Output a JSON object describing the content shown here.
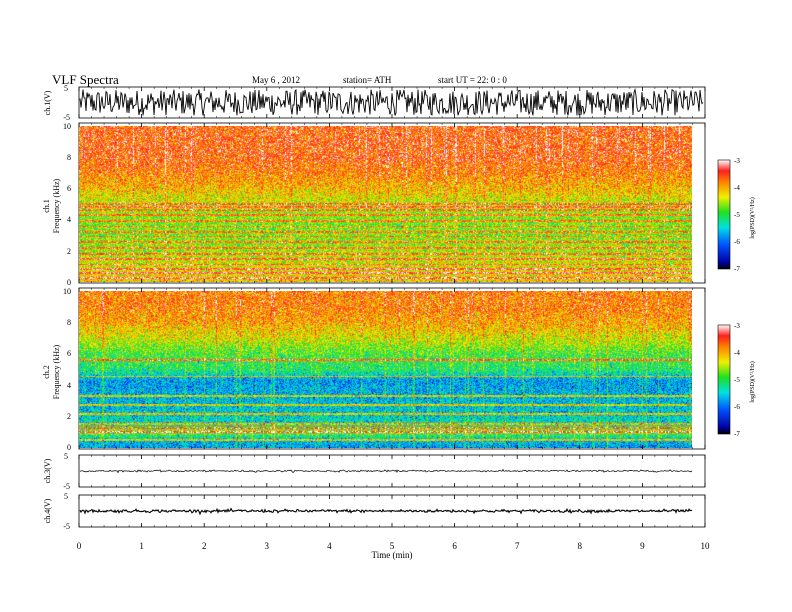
{
  "header": {
    "title": "VLF  Spectra",
    "date": "May 6  , 2012",
    "station": "station= ATH",
    "start": "start  UT  =    22: 0  : 0"
  },
  "chart_data": [
    {
      "id": "ch1-waveform",
      "type": "line",
      "ylabel": "ch.1(V)",
      "ylim": [
        -5,
        5
      ],
      "y_ticks": [
        "5",
        "-5"
      ],
      "xlim": [
        0,
        10
      ],
      "description_values": {
        "amplitude_range_V": [
          -4.5,
          4.5
        ]
      }
    },
    {
      "id": "ch1-spectrogram",
      "type": "heatmap",
      "ylabel_lines": [
        "ch.1",
        "Frequency  (kHz)"
      ],
      "ylim": [
        0,
        10
      ],
      "y_ticks": [
        "0",
        "2",
        "4",
        "6",
        "8",
        "10"
      ],
      "xlim": [
        0,
        10
      ],
      "data_end_min": 9.8,
      "colorbar": {
        "label": "log(PSD)(V²/Hz)",
        "range": [
          -7,
          -3
        ],
        "ticks": [
          "-3",
          "-4",
          "-5",
          "-6",
          "-7"
        ]
      },
      "levels_by_frequency_kHz": [
        [
          0,
          -4.2
        ],
        [
          1.2,
          -4.4
        ],
        [
          2,
          -4.6
        ],
        [
          3,
          -4.7
        ],
        [
          4,
          -4.7
        ],
        [
          5,
          -4.5
        ],
        [
          6,
          -4.1
        ],
        [
          7,
          -3.8
        ],
        [
          8,
          -3.6
        ],
        [
          10,
          -3.6
        ]
      ],
      "hum_lines_kHz": [
        0.25,
        0.55,
        0.8,
        1.1,
        1.45,
        1.75,
        2.15,
        2.55,
        2.9,
        3.2,
        3.55,
        3.9,
        4.3,
        4.6,
        4.8,
        5.0
      ]
    },
    {
      "id": "ch2-spectrogram",
      "type": "heatmap",
      "ylabel_lines": [
        "ch.2",
        "Frequency  (kHz)"
      ],
      "ylim": [
        0,
        10
      ],
      "y_ticks": [
        "0",
        "2",
        "4",
        "6",
        "8",
        "10"
      ],
      "xlim": [
        0,
        10
      ],
      "data_end_min": 9.8,
      "colorbar": {
        "label": "log(PSD)(V²/Hz)",
        "range": [
          -7,
          -3
        ],
        "ticks": [
          "-3",
          "-4",
          "-5",
          "-6",
          "-7"
        ]
      },
      "levels_by_frequency_kHz": [
        [
          0,
          -5.8
        ],
        [
          0.5,
          -5.6
        ],
        [
          1,
          -4.6
        ],
        [
          1.5,
          -5.4
        ],
        [
          2.5,
          -5.6
        ],
        [
          3.5,
          -5.7
        ],
        [
          4.3,
          -5.8
        ],
        [
          5,
          -5.1
        ],
        [
          6,
          -4.9
        ],
        [
          7,
          -4.4
        ],
        [
          8,
          -4.0
        ],
        [
          9,
          -3.8
        ],
        [
          10,
          -3.8
        ]
      ],
      "hum_lines_kHz": [
        0.5,
        1.0,
        1.25,
        1.5,
        2.15,
        2.7,
        3.3,
        4.55,
        5.6
      ]
    },
    {
      "id": "ch3-waveform",
      "type": "line",
      "ylabel": "ch.3(V)",
      "ylim": [
        -5,
        5
      ],
      "y_ticks": [
        "5",
        "-5"
      ],
      "xlim": [
        0,
        10
      ],
      "description_values": {
        "level_V": 0,
        "noise_V": 0.15
      }
    },
    {
      "id": "ch4-waveform",
      "type": "line",
      "ylabel": "ch.4(V)",
      "ylim": [
        -5,
        5
      ],
      "y_ticks": [
        "5",
        "-5"
      ],
      "xlim": [
        0,
        10
      ],
      "description_values": {
        "level_V": 0,
        "noise_V": 0.25
      }
    }
  ],
  "x_axis": {
    "label": "Time  (min)",
    "range": [
      0,
      10
    ],
    "ticks": [
      "0",
      "1",
      "2",
      "3",
      "4",
      "5",
      "6",
      "7",
      "8",
      "9",
      "10"
    ]
  }
}
